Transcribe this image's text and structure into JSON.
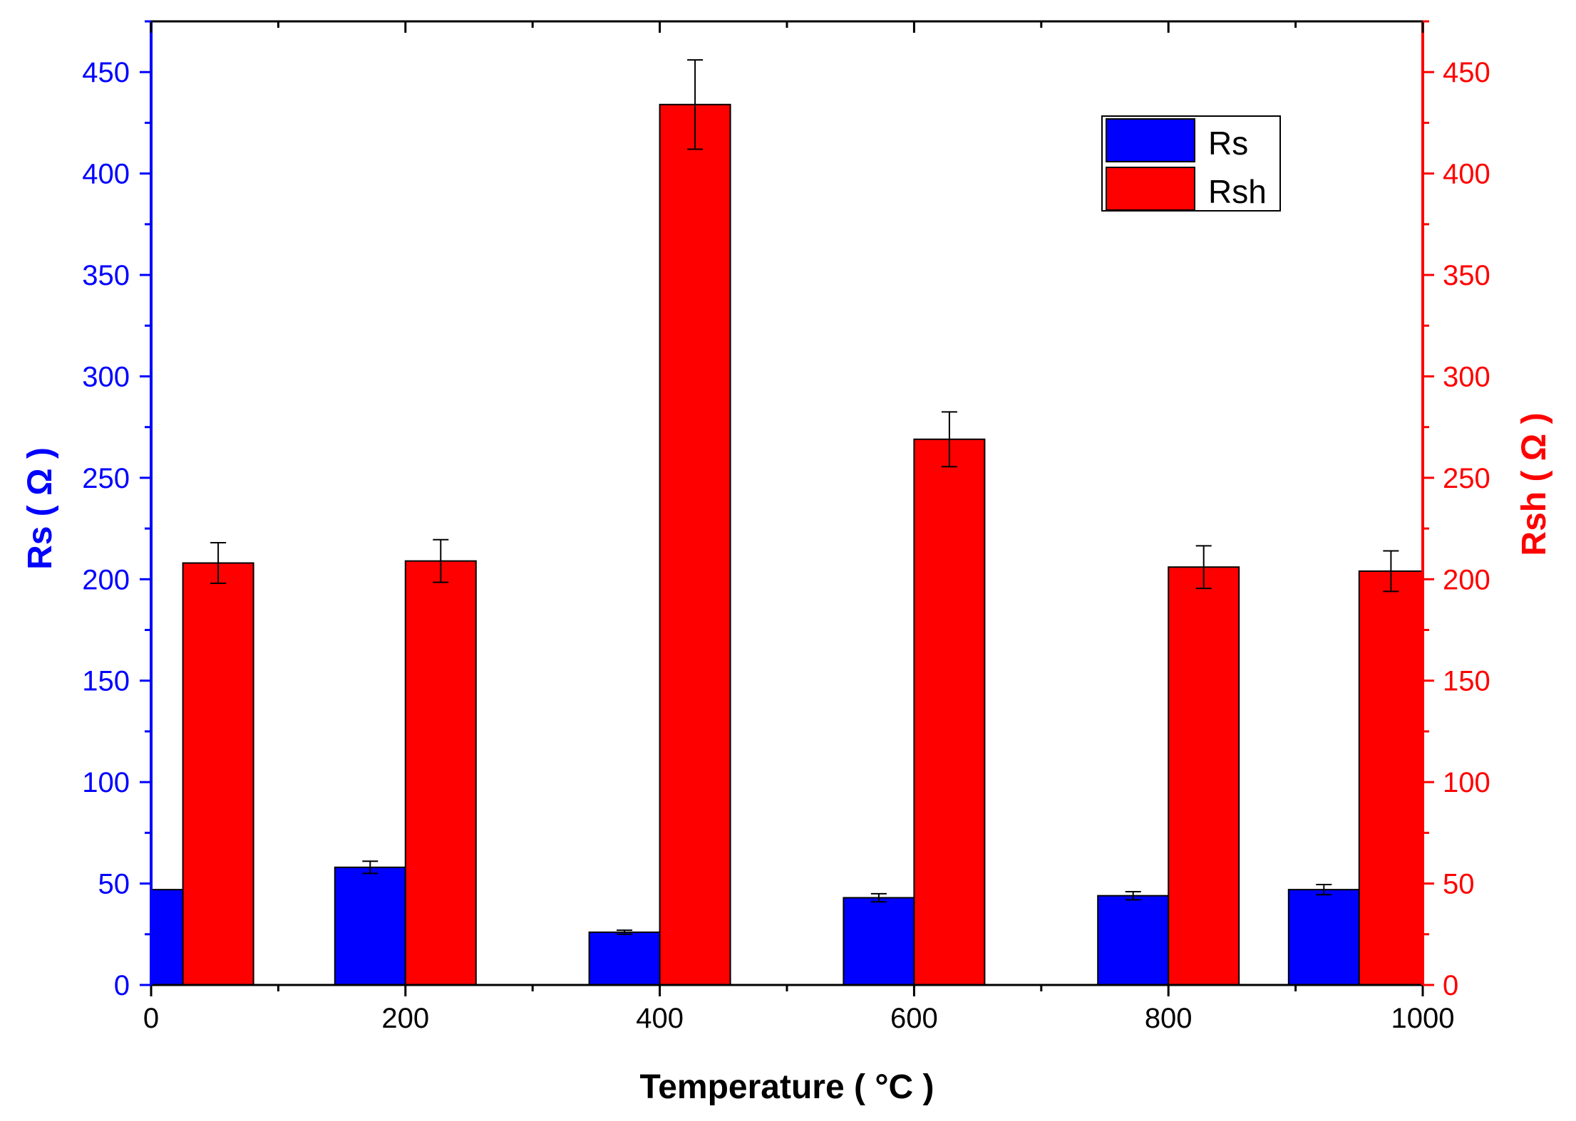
{
  "chart_data": {
    "type": "bar",
    "title": "",
    "xlabel": "Temperature ( °C )",
    "ylabel_left": "Rs ( Ω )",
    "ylabel_right": "Rsh ( Ω )",
    "xlim": [
      0,
      1000
    ],
    "ylim_left": [
      0,
      475
    ],
    "ylim_right": [
      0,
      475
    ],
    "x_ticks": [
      "0",
      "200",
      "400",
      "600",
      "800",
      "1000"
    ],
    "y_ticks_left": [
      "0",
      "50",
      "100",
      "150",
      "200",
      "250",
      "300",
      "350",
      "400",
      "450"
    ],
    "y_ticks_right": [
      "0",
      "50",
      "100",
      "150",
      "200",
      "250",
      "300",
      "350",
      "400",
      "450"
    ],
    "grid": false,
    "legend_position": "top-right",
    "x": [
      25,
      200,
      400,
      600,
      800,
      950
    ],
    "series": [
      {
        "name": "Rs",
        "axis": "left",
        "color": "#0000ff",
        "values": [
          47,
          58,
          26,
          43,
          44,
          47
        ],
        "errors": [
          0,
          3,
          1,
          2,
          2,
          2.5
        ]
      },
      {
        "name": "Rsh",
        "axis": "right",
        "color": "#ff0000",
        "values": [
          208,
          209,
          434,
          269,
          206,
          204
        ],
        "errors": [
          10,
          10.5,
          22,
          13.5,
          10.5,
          10
        ]
      }
    ]
  }
}
